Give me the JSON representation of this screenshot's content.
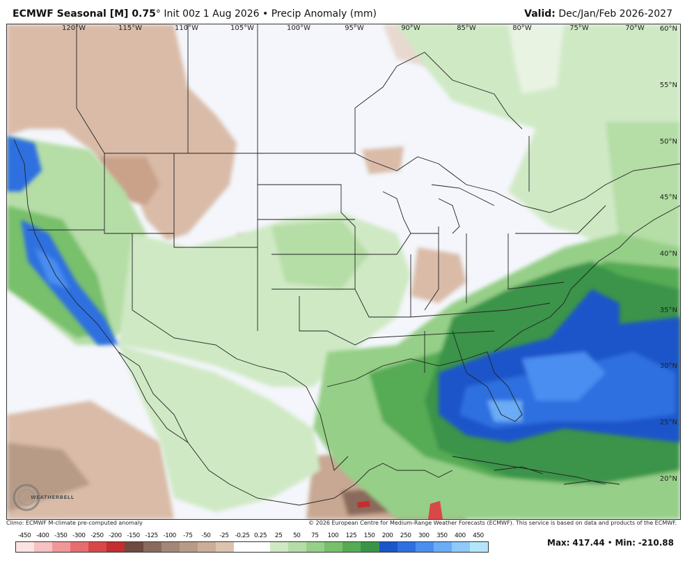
{
  "header": {
    "model": "ECMWF Seasonal [M] 0.75",
    "degree": "°",
    "init": "Init 00z 1 Aug 2026",
    "bullet": "•",
    "product": "Precip Anomaly (mm)",
    "valid_label": "Valid:",
    "valid_value": "Dec/Jan/Feb 2026-2027"
  },
  "map": {
    "lon_labels": [
      "120°W",
      "115°W",
      "110°W",
      "105°W",
      "100°W",
      "95°W",
      "90°W",
      "85°W",
      "80°W",
      "75°W",
      "70°W"
    ],
    "lat_labels": [
      "60°N",
      "55°N",
      "50°N",
      "45°N",
      "40°N",
      "35°N",
      "30°N",
      "25°N",
      "20°N"
    ]
  },
  "footer": {
    "climo": "Climo: ECMWF M-climate pre-computed anomaly",
    "copyright": "© 2026 European Centre for Medium-Range Weather Forecasts (ECMWF). This service is based on data and products of the ECMWF.",
    "logo_text": "WEATHERBELL"
  },
  "legend": {
    "ticks": [
      "-450",
      "-400",
      "-350",
      "-300",
      "-250",
      "-200",
      "-150",
      "-125",
      "-100",
      "-75",
      "-50",
      "-25",
      "-0.25",
      "0.25",
      "25",
      "50",
      "75",
      "100",
      "125",
      "150",
      "200",
      "250",
      "300",
      "350",
      "400",
      "450"
    ],
    "colors": [
      "#fbe3e3",
      "#f7c2c2",
      "#f09898",
      "#e66e6e",
      "#d94848",
      "#c42e2e",
      "#6f4a40",
      "#8a6a5c",
      "#a38777",
      "#b89b87",
      "#ccae98",
      "#dcc3b0",
      "#ffffff",
      "#ffffff",
      "#cfe9c4",
      "#b5dda6",
      "#96cf88",
      "#78c06c",
      "#56ab55",
      "#3a9448",
      "#1a55c9",
      "#2e70e0",
      "#4a8ef0",
      "#6aacf5",
      "#8ec9f9",
      "#b4e6fb"
    ]
  },
  "stats": {
    "max_label": "Max:",
    "max_value": "417.44",
    "bullet": "•",
    "min_label": "Min:",
    "min_value": "-210.88"
  }
}
